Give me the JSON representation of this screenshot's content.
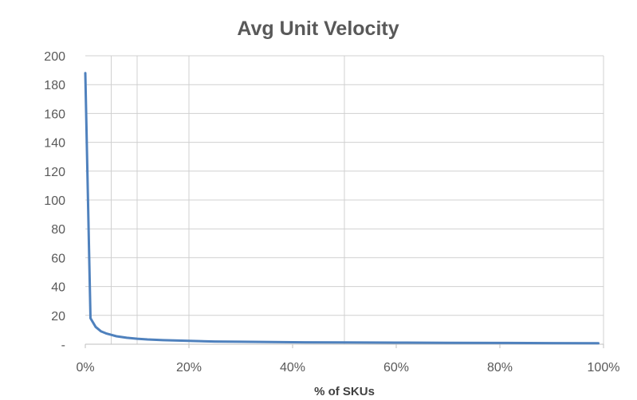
{
  "chart_data": {
    "type": "line",
    "title": "Avg Unit Velocity",
    "xlabel": "% of SKUs",
    "ylabel": "",
    "ylim": [
      0,
      200
    ],
    "xlim": [
      0,
      100
    ],
    "y_ticks": [
      {
        "value": 0,
        "label": "-"
      },
      {
        "value": 20,
        "label": "20"
      },
      {
        "value": 40,
        "label": "40"
      },
      {
        "value": 60,
        "label": "60"
      },
      {
        "value": 80,
        "label": "80"
      },
      {
        "value": 100,
        "label": "100"
      },
      {
        "value": 120,
        "label": "120"
      },
      {
        "value": 140,
        "label": "140"
      },
      {
        "value": 160,
        "label": "160"
      },
      {
        "value": 180,
        "label": "180"
      },
      {
        "value": 200,
        "label": "200"
      }
    ],
    "x_ticks": [
      {
        "value": 0,
        "label": "0%"
      },
      {
        "value": 20,
        "label": "20%"
      },
      {
        "value": 40,
        "label": "40%"
      },
      {
        "value": 60,
        "label": "60%"
      },
      {
        "value": 80,
        "label": "80%"
      },
      {
        "value": 100,
        "label": "100%"
      }
    ],
    "vertical_gridlines": [
      5,
      10,
      20,
      50
    ],
    "grid": true,
    "legend": "none",
    "line_color": "#4f81bd",
    "series": [
      {
        "x": [
          0,
          1,
          2,
          3,
          4,
          5,
          6,
          8,
          10,
          12,
          15,
          20,
          25,
          30,
          40,
          50,
          60,
          70,
          80,
          90,
          99
        ],
        "y": [
          188,
          18,
          12,
          9,
          7.5,
          6.5,
          5.5,
          4.5,
          3.8,
          3.3,
          2.8,
          2.3,
          1.9,
          1.7,
          1.4,
          1.2,
          1.1,
          1.0,
          0.9,
          0.8,
          0.7
        ]
      }
    ]
  }
}
